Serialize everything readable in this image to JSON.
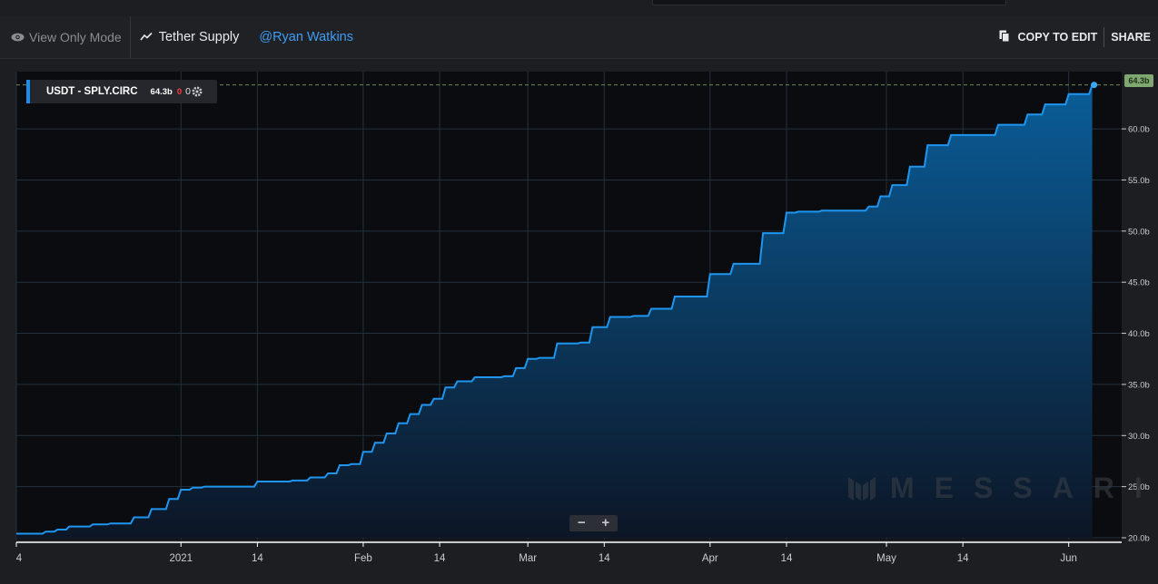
{
  "header": {
    "view_only_label": "View Only Mode",
    "chart_title": "Tether Supply",
    "author": "@Ryan Watkins",
    "copy_label": "COPY TO EDIT",
    "share_label": "SHARE"
  },
  "legend": {
    "symbol": "USDT - SPLY.CIRC",
    "value": "64.3b",
    "change": "0",
    "count": "0"
  },
  "last_value_badge": "64.3b",
  "watermark": "MESSARI",
  "zoom": {
    "minus": "−",
    "plus": "+"
  },
  "colors": {
    "line": "#1e96f0",
    "area_top": "#0a5d98",
    "plot_bg": "#0b0c0f",
    "badge": "#7ea86f",
    "author_link": "#3f9cf5"
  },
  "chart_data": {
    "type": "area",
    "title": "",
    "series": [
      {
        "name": "USDT - SPLY.CIRC",
        "x": [
          "2020-12-04",
          "2020-12-07",
          "2020-12-09",
          "2020-12-11",
          "2020-12-13",
          "2020-12-15",
          "2020-12-17",
          "2020-12-20",
          "2020-12-24",
          "2020-12-27",
          "2020-12-30",
          "2021-01-01",
          "2021-01-03",
          "2021-01-05",
          "2021-01-08",
          "2021-01-11",
          "2021-01-14",
          "2021-01-17",
          "2021-01-20",
          "2021-01-23",
          "2021-01-26",
          "2021-01-28",
          "2021-01-30",
          "2021-02-01",
          "2021-02-03",
          "2021-02-05",
          "2021-02-07",
          "2021-02-09",
          "2021-02-11",
          "2021-02-13",
          "2021-02-15",
          "2021-02-17",
          "2021-02-20",
          "2021-02-25",
          "2021-02-27",
          "2021-03-01",
          "2021-03-03",
          "2021-03-06",
          "2021-03-10",
          "2021-03-12",
          "2021-03-15",
          "2021-03-19",
          "2021-03-22",
          "2021-03-26",
          "2021-04-01",
          "2021-04-05",
          "2021-04-10",
          "2021-04-14",
          "2021-04-16",
          "2021-04-18",
          "2021-04-20",
          "2021-04-28",
          "2021-04-30",
          "2021-05-02",
          "2021-05-05",
          "2021-05-08",
          "2021-05-12",
          "2021-05-14",
          "2021-05-20",
          "2021-05-25",
          "2021-05-28",
          "2021-06-01",
          "2021-06-05"
        ],
        "values": [
          20.4,
          20.4,
          20.6,
          20.8,
          21.1,
          21.1,
          21.3,
          21.4,
          22.0,
          22.8,
          23.8,
          24.7,
          24.9,
          25.0,
          25.0,
          25.0,
          25.5,
          25.5,
          25.6,
          25.9,
          26.3,
          27.1,
          27.2,
          28.4,
          29.3,
          30.2,
          31.2,
          32.1,
          33.0,
          33.6,
          34.7,
          35.3,
          35.7,
          35.8,
          36.6,
          37.5,
          37.6,
          39.0,
          39.1,
          40.6,
          41.6,
          41.7,
          42.4,
          43.6,
          45.8,
          46.8,
          49.8,
          51.8,
          51.9,
          51.9,
          52.0,
          52.4,
          53.4,
          54.5,
          56.3,
          58.4,
          59.4,
          59.4,
          60.4,
          61.4,
          62.4,
          63.4,
          64.3
        ]
      }
    ],
    "y_ticks": [
      "20.0b",
      "25.0b",
      "30.0b",
      "35.0b",
      "40.0b",
      "45.0b",
      "50.0b",
      "55.0b",
      "60.0b"
    ],
    "x_ticks": [
      "4",
      "2021",
      "14",
      "Feb",
      "14",
      "Mar",
      "14",
      "Apr",
      "14",
      "May",
      "14",
      "Jun"
    ],
    "ylim": [
      20,
      64.8
    ],
    "xlim": [
      "2020-12-04",
      "2021-06-08"
    ],
    "y_unit": "b",
    "grid": true,
    "legend_position": "top-left"
  }
}
